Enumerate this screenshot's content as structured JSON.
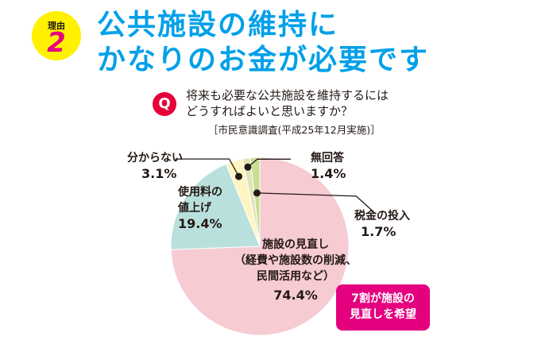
{
  "header": {
    "badge_label": "理由",
    "badge_number": "2",
    "title_line1": "公共施設の維持に",
    "title_line2": "かなりのお金が必要です"
  },
  "question": {
    "marker": "Q",
    "line1": "将来も必要な公共施設を維持するには",
    "line2": "どうすればよいと思いますか？",
    "source": "［市民意識調査(平成25年12月実施)］"
  },
  "callout": {
    "line1": "7割が施設の",
    "line2": "見直しを希望"
  },
  "colors": {
    "title": "#00a0e9",
    "badge": "#fff100",
    "accent": "#e4007f",
    "q_badge": "#e60039"
  },
  "chart_data": {
    "type": "pie",
    "title": "",
    "slices": [
      {
        "key": "review",
        "name_lines": [
          "施設の見直し",
          "（経費や施設数の削減、",
          "民間活用など）"
        ],
        "value_label": "74.4%",
        "value": 74.4,
        "color": "#f6cbd2"
      },
      {
        "key": "fee",
        "name_lines": [
          "使用料の",
          "値上げ"
        ],
        "value_label": "19.4%",
        "value": 19.4,
        "color": "#b9e0dc"
      },
      {
        "key": "unknown",
        "name_lines": [
          "分からない"
        ],
        "value_label": "3.1%",
        "value": 3.1,
        "color": "#fdf6c3"
      },
      {
        "key": "noanswer",
        "name_lines": [
          "無回答"
        ],
        "value_label": "1.4%",
        "value": 1.4,
        "color": "#e3e3b8"
      },
      {
        "key": "tax",
        "name_lines": [
          "税金の投入"
        ],
        "value_label": "1.7%",
        "value": 1.7,
        "color": "#c6df94"
      }
    ]
  }
}
